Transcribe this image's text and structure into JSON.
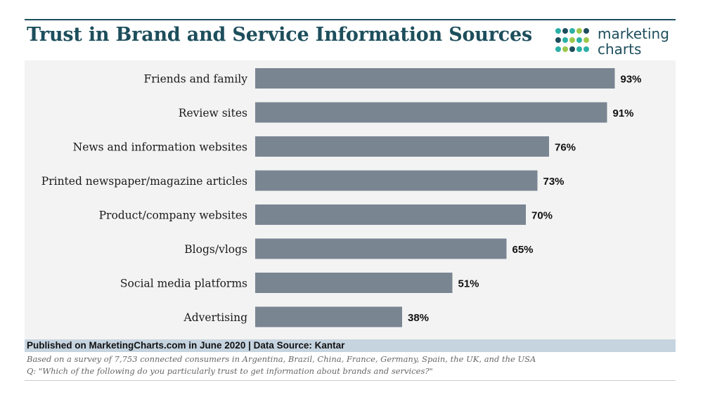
{
  "header": {
    "title": "Trust in Brand and Service Information Sources"
  },
  "logo": {
    "line1": "marketing",
    "line2": "charts",
    "dot_colors": [
      "#2bb0a6",
      "#1d4e5c",
      "#9cc84b"
    ]
  },
  "chart_data": {
    "type": "bar",
    "orientation": "horizontal",
    "categories": [
      "Friends and family",
      "Review sites",
      "News and information websites",
      "Printed newspaper/magazine articles",
      "Product/company websites",
      "Blogs/vlogs",
      "Social media platforms",
      "Advertising"
    ],
    "values": [
      93,
      91,
      76,
      73,
      70,
      65,
      51,
      38
    ],
    "value_labels": [
      "93%",
      "91%",
      "76%",
      "73%",
      "70%",
      "65%",
      "51%",
      "38%"
    ],
    "xlim": [
      0,
      100
    ],
    "grid": false,
    "bar_color": "#7a8592",
    "background_color": "#f3f3f3"
  },
  "footer": {
    "published": "Published on MarketingCharts.com in June 2020 | Data Source: Kantar",
    "note_survey": "Based on a survey of 7,753 connected consumers in Argentina, Brazil, China, France, Germany, Spain, the UK, and the USA",
    "note_question": "Q: \"Which of the following do you particularly trust to get information about brands and services?\""
  }
}
